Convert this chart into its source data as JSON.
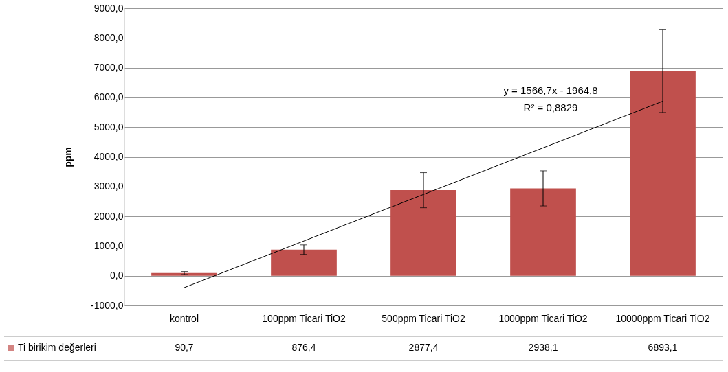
{
  "chart_data": {
    "type": "bar",
    "ylabel": "ppm",
    "categories": [
      "kontrol",
      "100ppm Ticari TiO2",
      "500ppm Ticari TiO2",
      "1000ppm Ticari TiO2",
      "10000ppm Ticari TiO2"
    ],
    "series": [
      {
        "name": "Ti birikim değerleri",
        "color": "#c0504d",
        "values": [
          90.7,
          876.4,
          2877.4,
          2938.1,
          6893.1
        ],
        "errors": [
          50,
          160,
          590,
          590,
          1400
        ],
        "value_labels": [
          "90,7",
          "876,4",
          "2877,4",
          "2938,1",
          "6893,1"
        ]
      },
      {
        "type": "line",
        "color": "#000000",
        "x": [
          "kontrol",
          "10000ppm Ticari TiO2"
        ],
        "values": [
          -400,
          5870
        ]
      }
    ],
    "ylim": [
      -1000,
      9000
    ],
    "yticks": [
      {
        "value": -1000,
        "label": "-1000,0"
      },
      {
        "value": 0,
        "label": "0,0"
      },
      {
        "value": 1000,
        "label": "1000,0"
      },
      {
        "value": 2000,
        "label": "2000,0"
      },
      {
        "value": 3000,
        "label": "3000,0"
      },
      {
        "value": 4000,
        "label": "4000,0"
      },
      {
        "value": 5000,
        "label": "5000,0"
      },
      {
        "value": 6000,
        "label": "6000,0"
      },
      {
        "value": 7000,
        "label": "7000,0"
      },
      {
        "value": 8000,
        "label": "8000,0"
      },
      {
        "value": 9000,
        "label": "9000,0"
      }
    ],
    "annotations": [
      "y = 1566,7x - 1964,8",
      "R² = 0,8829"
    ],
    "grid": "y",
    "legend": "bottom"
  }
}
